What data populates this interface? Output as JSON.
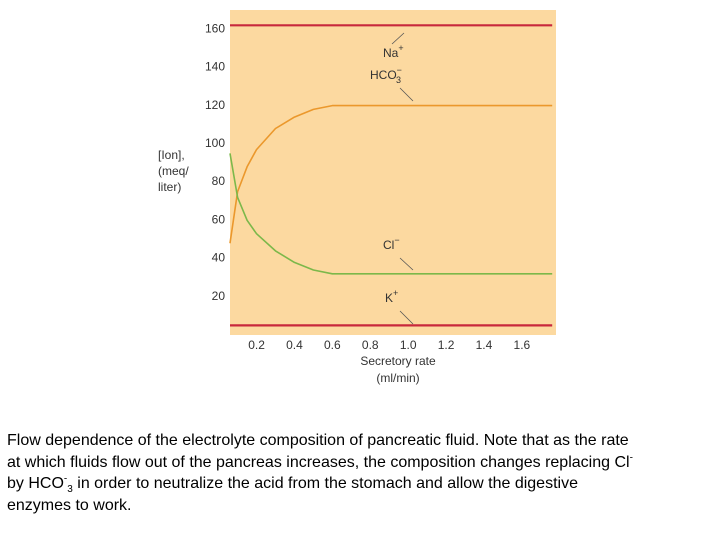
{
  "chart_data": {
    "type": "line",
    "y_label": [
      "[Ion],",
      "(meq/",
      "liter)"
    ],
    "x_label": [
      "Secretory rate",
      "(ml/min)"
    ],
    "x": [
      0.06,
      0.1,
      0.15,
      0.2,
      0.3,
      0.4,
      0.5,
      0.6,
      1.0,
      1.76
    ],
    "series": [
      {
        "label": [
          {
            "t": "Na"
          },
          {
            "sup": "+"
          }
        ],
        "color": "#c8283c",
        "values": [
          162,
          162,
          162,
          162,
          162,
          162,
          162,
          162,
          162,
          162
        ]
      },
      {
        "label": [
          {
            "t": "HCO"
          },
          {
            "sup": "−"
          },
          {
            "sub": "3"
          }
        ],
        "color": "#eb982c",
        "values": [
          48,
          75,
          88,
          97,
          108,
          114,
          118,
          120,
          120,
          120
        ]
      },
      {
        "label": [
          {
            "t": "Cl"
          },
          {
            "sup": "−"
          }
        ],
        "color": "#7cb84a",
        "values": [
          95,
          72,
          60,
          53,
          44,
          38,
          34,
          32,
          32,
          32
        ]
      },
      {
        "label": [
          {
            "t": "K"
          },
          {
            "sup": "+"
          }
        ],
        "color": "#c8283c",
        "values": [
          5,
          5,
          5,
          5,
          5,
          5,
          5,
          5,
          5,
          5
        ]
      }
    ],
    "xlim": [
      0.06,
      1.78
    ],
    "ylim": [
      0,
      170
    ],
    "xticks": [
      0.2,
      0.4,
      0.6,
      0.8,
      {
        "value": 1,
        "label": "1.0"
      },
      1.2,
      1.4,
      1.6
    ],
    "yticks": [
      20,
      40,
      60,
      80,
      100,
      120,
      140,
      160
    ],
    "background": "#fcd9a0"
  },
  "caption": [
    [
      {
        "t": "Flow dependence of the electrolyte composition of pancreatic fluid. Note that as the rate"
      }
    ],
    [
      {
        "t": "at which fluids flow out of the pancreas increases, the composition changes replacing Cl"
      },
      {
        "sup": "-"
      }
    ],
    [
      {
        "t": "by HCO"
      },
      {
        "sup": "-"
      },
      {
        "sub": "3"
      },
      {
        "t": " in order to neutralize the acid from the stomach and allow the digestive"
      }
    ],
    [
      {
        "t": "enzymes to work."
      }
    ]
  ]
}
